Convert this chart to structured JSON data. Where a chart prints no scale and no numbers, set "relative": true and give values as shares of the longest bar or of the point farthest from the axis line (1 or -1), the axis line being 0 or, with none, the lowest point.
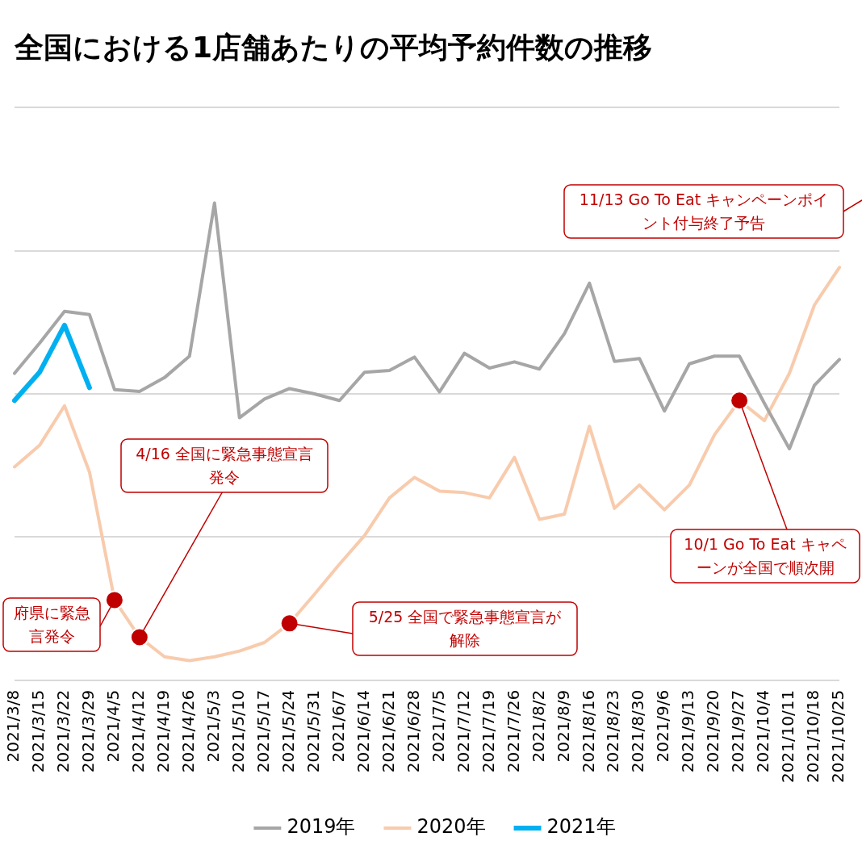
{
  "chart_data": {
    "type": "line",
    "title": "全国における1店舗あたりの平均予約件数の推移",
    "relative": true,
    "grid": "y",
    "legend": "bottom",
    "marker": "none",
    "tick_labels": "x",
    "categories": [
      "2021/3/8",
      "2021/3/15",
      "2021/3/22",
      "2021/3/29",
      "2021/4/5",
      "2021/4/12",
      "2021/4/19",
      "2021/4/26",
      "2021/5/3",
      "2021/5/10",
      "2021/5/17",
      "2021/5/24",
      "2021/5/31",
      "2021/6/7",
      "2021/6/14",
      "2021/6/21",
      "2021/6/28",
      "2021/7/5",
      "2021/7/12",
      "2021/7/19",
      "2021/7/26",
      "2021/8/2",
      "2021/8/9",
      "2021/8/16",
      "2021/8/23",
      "2021/8/30",
      "2021/9/6",
      "2021/9/13",
      "2021/9/20",
      "2021/9/27",
      "2021/10/4",
      "2021/10/11",
      "2021/10/18",
      "2021/10/25"
    ],
    "series": [
      {
        "name": "2019年",
        "color": "#a6a6a6",
        "values": [
          0.643,
          0.706,
          0.773,
          0.766,
          0.609,
          0.605,
          0.634,
          0.679,
          1,
          0.55,
          0.589,
          0.611,
          0.6,
          0.586,
          0.645,
          0.649,
          0.677,
          0.604,
          0.685,
          0.654,
          0.667,
          0.652,
          0.726,
          0.832,
          0.668,
          0.674,
          0.564,
          0.663,
          0.679,
          0.679,
          0.58,
          0.485,
          0.618,
          0.672
        ]
      },
      {
        "name": "2020年",
        "color": "#f8cbad",
        "values": [
          0.447,
          0.492,
          0.575,
          0.436,
          0.168,
          0.09,
          0.049,
          0.041,
          0.049,
          0.061,
          0.079,
          0.119,
          0.18,
          0.243,
          0.303,
          0.382,
          0.425,
          0.396,
          0.393,
          0.382,
          0.467,
          0.337,
          0.348,
          0.532,
          0.36,
          0.409,
          0.357,
          0.409,
          0.514,
          0.586,
          0.544,
          0.643,
          0.786,
          0.865
        ]
      },
      {
        "name": "2021年",
        "color": "#00b0f0",
        "values": [
          0.586,
          0.645,
          0.744,
          0.613,
          null,
          null,
          null,
          null,
          null,
          null,
          null,
          null,
          null,
          null,
          null,
          null,
          null,
          null,
          null,
          null,
          null,
          null,
          null,
          null,
          null,
          null,
          null,
          null,
          null,
          null,
          null,
          null,
          null,
          null
        ]
      }
    ],
    "annotations": [
      {
        "text": "府県に緊急言発令",
        "x": "2021/4/5",
        "y": 0.168
      },
      {
        "text": "4/16  全国に緊急事態宣言発令",
        "x": "2021/4/12",
        "y": 0.09
      },
      {
        "text": "5/25  全国で緊急事態宣言が解除",
        "x": "2021/5/24",
        "y": 0.119
      },
      {
        "text": "10/1  Go To Eat キャペーンが全国で順次開",
        "x": "2021/9/27",
        "y": 0.586
      },
      "11/13  Go To Eat キャンペーンポイント付与終了予告"
    ]
  }
}
